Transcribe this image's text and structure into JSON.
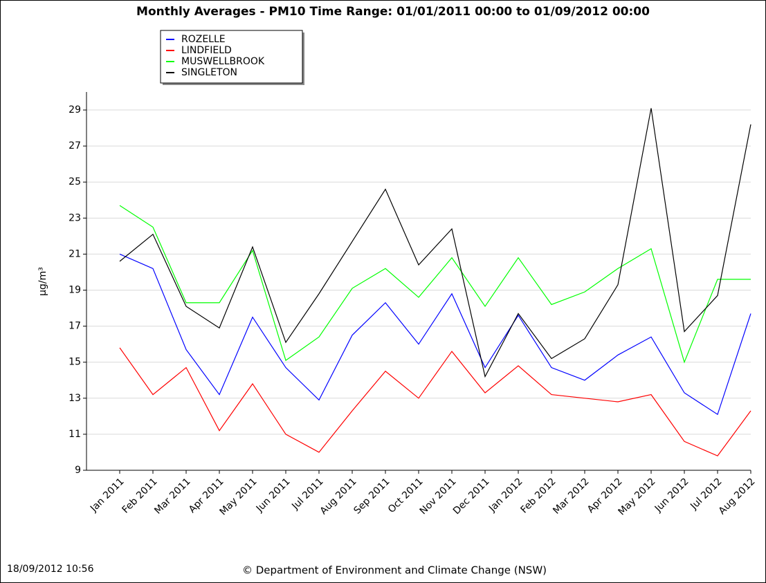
{
  "chart_data": {
    "type": "line",
    "title": "Monthly Averages - PM10 Time Range: 01/01/2011 00:00 to 01/09/2012 00:00",
    "y_label": "µg/m³",
    "categories": [
      "Jan 2011",
      "Feb 2011",
      "Mar 2011",
      "Apr 2011",
      "May 2011",
      "Jun 2011",
      "Jul 2011",
      "Aug 2011",
      "Sep 2011",
      "Oct 2011",
      "Nov 2011",
      "Dec 2011",
      "Jan 2012",
      "Feb 2012",
      "Mar 2012",
      "Apr 2012",
      "May 2012",
      "Jun 2012",
      "Jul 2012",
      "Aug 2012"
    ],
    "series": [
      {
        "name": "ROZELLE",
        "color": "#0000ff",
        "values": [
          21.0,
          20.2,
          15.7,
          13.2,
          17.5,
          14.7,
          12.9,
          16.5,
          18.3,
          16.0,
          18.8,
          14.7,
          17.6,
          14.7,
          14.0,
          15.4,
          16.4,
          13.3,
          12.1,
          17.7
        ]
      },
      {
        "name": "LINDFIELD",
        "color": "#ff0000",
        "values": [
          15.8,
          13.2,
          14.7,
          11.2,
          13.8,
          11.0,
          10.0,
          12.3,
          14.5,
          13.0,
          15.6,
          13.3,
          14.8,
          13.2,
          13.0,
          12.8,
          13.2,
          10.6,
          9.8,
          12.3
        ]
      },
      {
        "name": "MUSWELLBROOK",
        "color": "#00ff00",
        "values": [
          23.7,
          22.5,
          18.3,
          18.3,
          21.2,
          15.1,
          16.4,
          19.1,
          20.2,
          18.6,
          20.8,
          18.1,
          20.8,
          18.2,
          18.9,
          20.2,
          21.3,
          15.0,
          19.6,
          19.6
        ]
      },
      {
        "name": "SINGLETON",
        "color": "#000000",
        "values": [
          20.6,
          22.1,
          18.1,
          16.9,
          21.4,
          16.1,
          18.8,
          21.7,
          24.6,
          20.4,
          22.4,
          14.2,
          17.7,
          15.2,
          16.3,
          19.3,
          29.1,
          16.7,
          18.7,
          28.2
        ]
      }
    ],
    "ylim": [
      9,
      30
    ],
    "yticks": [
      9,
      11,
      13,
      15,
      17,
      19,
      21,
      23,
      25,
      27,
      29
    ],
    "grid": true,
    "legend": "upper-left",
    "timestamp": "18/09/2012 10:56",
    "credit": "© Department of Environment and Climate Change (NSW)"
  }
}
